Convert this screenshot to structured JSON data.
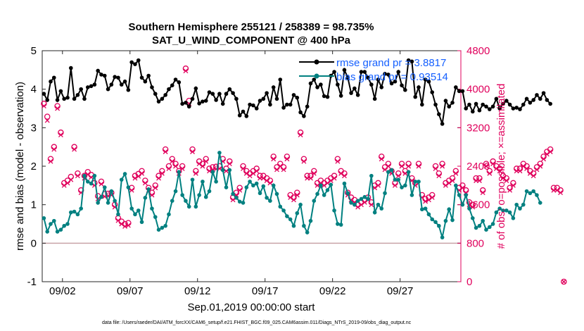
{
  "chart_data": {
    "type": "line",
    "title": "Southern Hemisphere 255121 / 258389 = 98.735%",
    "subtitle": "SAT_U_WIND_COMPONENT @ 400 hPa",
    "xlabel": "Sep.01,2019 00:00:00 start",
    "ylabel": "rmse and bias (model - observation)",
    "y2label": "# of obs: o=possible; ×=assimilated",
    "footnote": "data file: /Users/raeder/DAI/ATM_forcXX/CAM6_setup/f.e21.FHIST_BGC.f09_025.CAM6assim.011/Diags_NTrS_2019-09/obs_diag_output.nc",
    "xlim": [
      0.5,
      31.5
    ],
    "ylim": [
      -1,
      5
    ],
    "y2lim": [
      0,
      4800
    ],
    "x_ticks": [
      2,
      7,
      12,
      17,
      22,
      27
    ],
    "x_tick_labels": [
      "09/02",
      "09/07",
      "09/12",
      "09/17",
      "09/22",
      "09/27"
    ],
    "y_ticks": [
      -1,
      0,
      1,
      2,
      3,
      4,
      5
    ],
    "y2_ticks": [
      0,
      800,
      1600,
      2400,
      3200,
      4000,
      4800
    ],
    "zero_line": 0,
    "series": [
      {
        "name": "rmse grand pr = 3.8817",
        "axis": "left",
        "color": "#000000",
        "marker": "filled-circle",
        "x_start": 0.625,
        "x_step": 0.25,
        "values": [
          3.88,
          3.72,
          4.2,
          4.3,
          3.72,
          3.95,
          3.75,
          3.78,
          4.55,
          3.75,
          3.85,
          4.0,
          3.75,
          4.05,
          4.08,
          4.12,
          4.48,
          4.38,
          4.35,
          4.0,
          4.12,
          4.32,
          4.3,
          4.12,
          4.2,
          3.98,
          4.7,
          4.65,
          4.75,
          4.3,
          4.2,
          4.35,
          4.05,
          3.88,
          3.68,
          3.75,
          3.85,
          4.0,
          4.1,
          4.25,
          4.18,
          3.62,
          3.65,
          3.55,
          3.75,
          4.02,
          3.63,
          3.68,
          3.7,
          3.92,
          3.88,
          3.72,
          3.88,
          3.62,
          3.88,
          4.0,
          3.9,
          3.75,
          3.32,
          3.42,
          3.3,
          3.6,
          3.58,
          3.5,
          3.7,
          3.75,
          3.9,
          3.6,
          4.05,
          3.75,
          4.25,
          3.52,
          3.6,
          3.6,
          3.85,
          3.78,
          3.4,
          3.3,
          3.55,
          4.15,
          4.25,
          4.05,
          4.12,
          3.82,
          3.8,
          4.35,
          4.45,
          4.12,
          3.83,
          4.5,
          4.3,
          3.9,
          4.02,
          3.85,
          4.45,
          4.45,
          4.3,
          4.12,
          3.75,
          4.25,
          4.05,
          4.4,
          4.38,
          4.15,
          4.2,
          4.45,
          4.1,
          3.98,
          4.75,
          4.72,
          3.8,
          4.05,
          3.6,
          4.25,
          4.2,
          3.92,
          3.6,
          3.35,
          3.1,
          3.7,
          3.55,
          3.65,
          4.05,
          3.95,
          3.95,
          3.5,
          3.6,
          3.42,
          3.62,
          3.45,
          3.6,
          3.55,
          3.48,
          3.55,
          3.75,
          3.5,
          3.62,
          3.7,
          3.6,
          3.5,
          3.52,
          3.48,
          3.6,
          3.75,
          3.65,
          3.72,
          3.85,
          3.75,
          3.9,
          3.72,
          3.62
        ]
      },
      {
        "name": "bias grand pr = 0.93514",
        "axis": "left",
        "color": "#008080",
        "marker": "filled-circle",
        "x_start": 0.625,
        "x_step": 0.25,
        "values": [
          0.65,
          0.3,
          0.5,
          0.58,
          0.3,
          0.35,
          0.45,
          0.5,
          0.8,
          0.82,
          0.75,
          0.9,
          1.75,
          1.6,
          1.55,
          1.75,
          1.05,
          1.2,
          1.45,
          1.05,
          1.35,
          1.1,
          0.75,
          1.65,
          1.8,
          1.45,
          0.9,
          0.75,
          0.85,
          0.55,
          1.18,
          1.4,
          0.9,
          0.68,
          0.35,
          0.4,
          0.45,
          0.75,
          1.1,
          1.35,
          1.85,
          1.25,
          1.1,
          0.95,
          1.65,
          0.95,
          1.25,
          1.6,
          1.2,
          1.35,
          1.85,
          1.6,
          2.35,
          1.9,
          1.45,
          1.9,
          1.28,
          1.18,
          1.08,
          1.05,
          1.45,
          1.6,
          1.5,
          1.55,
          1.3,
          1.48,
          1.18,
          1.1,
          1.5,
          1.28,
          0.95,
          0.85,
          0.7,
          0.62,
          0.45,
          0.78,
          1.0,
          0.45,
          0.28,
          0.58,
          1.1,
          1.28,
          1.5,
          1.25,
          1.38,
          1.52,
          0.85,
          0.5,
          0.48,
          1.55,
          1.3,
          1.05,
          1.0,
          1.1,
          1.15,
          1.2,
          1.15,
          1.75,
          0.8,
          1.0,
          0.9,
          1.3,
          1.85,
          1.9,
          1.65,
          1.65,
          1.45,
          1.5,
          1.85,
          1.25,
          1.6,
          1.6,
          0.88,
          0.9,
          0.75,
          0.62,
          0.55,
          0.45,
          0.15,
          0.58,
          0.88,
          0.6,
          1.5,
          1.25,
          1.0,
          1.25,
          0.9,
          0.65,
          0.4,
          0.45,
          0.58,
          0.35,
          0.42,
          0.5,
          0.8,
          0.9,
          0.85,
          0.85,
          0.8,
          0.65,
          1.0,
          0.9,
          1.0,
          1.35,
          1.3,
          1.35,
          1.25,
          1.05
        ]
      },
      {
        "name": "# of obs possible",
        "axis": "right",
        "color": "#e0005c",
        "marker": "open-circle",
        "x_start": 0.625,
        "x_step": 0.25,
        "values": [
          3700,
          3430,
          2550,
          2800,
          3650,
          3100,
          2050,
          2100,
          2180,
          2800,
          2250,
          1900,
          2200,
          2280,
          2220,
          2050,
          1780,
          2080,
          1820,
          1830,
          1850,
          1600,
          1320,
          1250,
          1200,
          1220,
          1950,
          2200,
          2240,
          2300,
          2100,
          1950,
          1850,
          2000,
          2200,
          2300,
          2750,
          2400,
          2550,
          2450,
          2300,
          2400,
          4430,
          3760,
          2750,
          2300,
          2500,
          2450,
          2550,
          2350,
          2380,
          2390,
          2400,
          2550,
          2350,
          2500,
          1750,
          1850,
          1950,
          2400,
          2300,
          2250,
          2300,
          2350,
          2200,
          2200,
          2150,
          2100,
          2600,
          2380,
          2450,
          2380,
          2600,
          1800,
          1750,
          1850,
          3100,
          2550,
          2200,
          2200,
          2300,
          2050,
          2100,
          2050,
          2100,
          2150,
          2200,
          2550,
          2300,
          2250,
          1850,
          1750,
          1700,
          1600,
          1650,
          1700,
          1750,
          1650,
          2000,
          2050,
          2600,
          2380,
          2450,
          2300,
          2050,
          2250,
          2450,
          2300,
          2450,
          2150,
          2050,
          2450,
          1800,
          1720,
          1750,
          1800,
          2400,
          2250,
          2450,
          2050,
          2100,
          2150,
          2300,
          1950,
          2000,
          1900,
          1650,
          1600,
          2150,
          2150,
          1900,
          2450,
          2300,
          2500,
          2400,
          2350,
          2200,
          2150,
          1950,
          2050,
          2350,
          2350,
          2450,
          2400,
          2300,
          2250,
          2380,
          2450,
          2600,
          2700,
          2750,
          1950,
          1950,
          1900,
          0
        ]
      },
      {
        "name": "# of obs assimilated",
        "axis": "right",
        "color": "#e0005c",
        "marker": "x",
        "x_start": 0.625,
        "x_step": 0.25,
        "values": [
          3650,
          3350,
          2500,
          2750,
          3600,
          3050,
          2000,
          2050,
          2120,
          2750,
          2200,
          1850,
          2150,
          2230,
          2170,
          2000,
          1720,
          2030,
          1770,
          1780,
          1800,
          1550,
          1270,
          1200,
          1150,
          1170,
          1900,
          2150,
          2190,
          2250,
          2050,
          1900,
          1800,
          1950,
          2150,
          2250,
          2700,
          2350,
          2500,
          2400,
          2250,
          2350,
          4380,
          3700,
          2700,
          2250,
          2450,
          2400,
          2500,
          2300,
          2330,
          2340,
          2350,
          2500,
          2300,
          2450,
          1700,
          1800,
          1900,
          2350,
          2250,
          2200,
          2250,
          2300,
          2150,
          2150,
          2100,
          2050,
          2550,
          2330,
          2400,
          2330,
          2550,
          1750,
          1700,
          1800,
          3050,
          2500,
          2150,
          2150,
          2250,
          2000,
          2050,
          2000,
          2050,
          2100,
          2150,
          2500,
          2250,
          2200,
          1800,
          1700,
          1650,
          1550,
          1600,
          1650,
          1700,
          1600,
          1950,
          2000,
          2550,
          2330,
          2400,
          2250,
          2000,
          2200,
          2400,
          2250,
          2400,
          2100,
          2000,
          2400,
          1750,
          1670,
          1700,
          1750,
          2350,
          2200,
          2400,
          2000,
          2050,
          2100,
          2250,
          1900,
          1950,
          1850,
          1600,
          1550,
          2100,
          2100,
          1850,
          2400,
          2250,
          2450,
          2350,
          2300,
          2150,
          2100,
          1900,
          2000,
          2300,
          2300,
          2400,
          2350,
          2250,
          2200,
          2330,
          2400,
          2550,
          2650,
          2700,
          1900,
          1900,
          1850,
          0
        ]
      }
    ],
    "legend_position": "top-right"
  }
}
